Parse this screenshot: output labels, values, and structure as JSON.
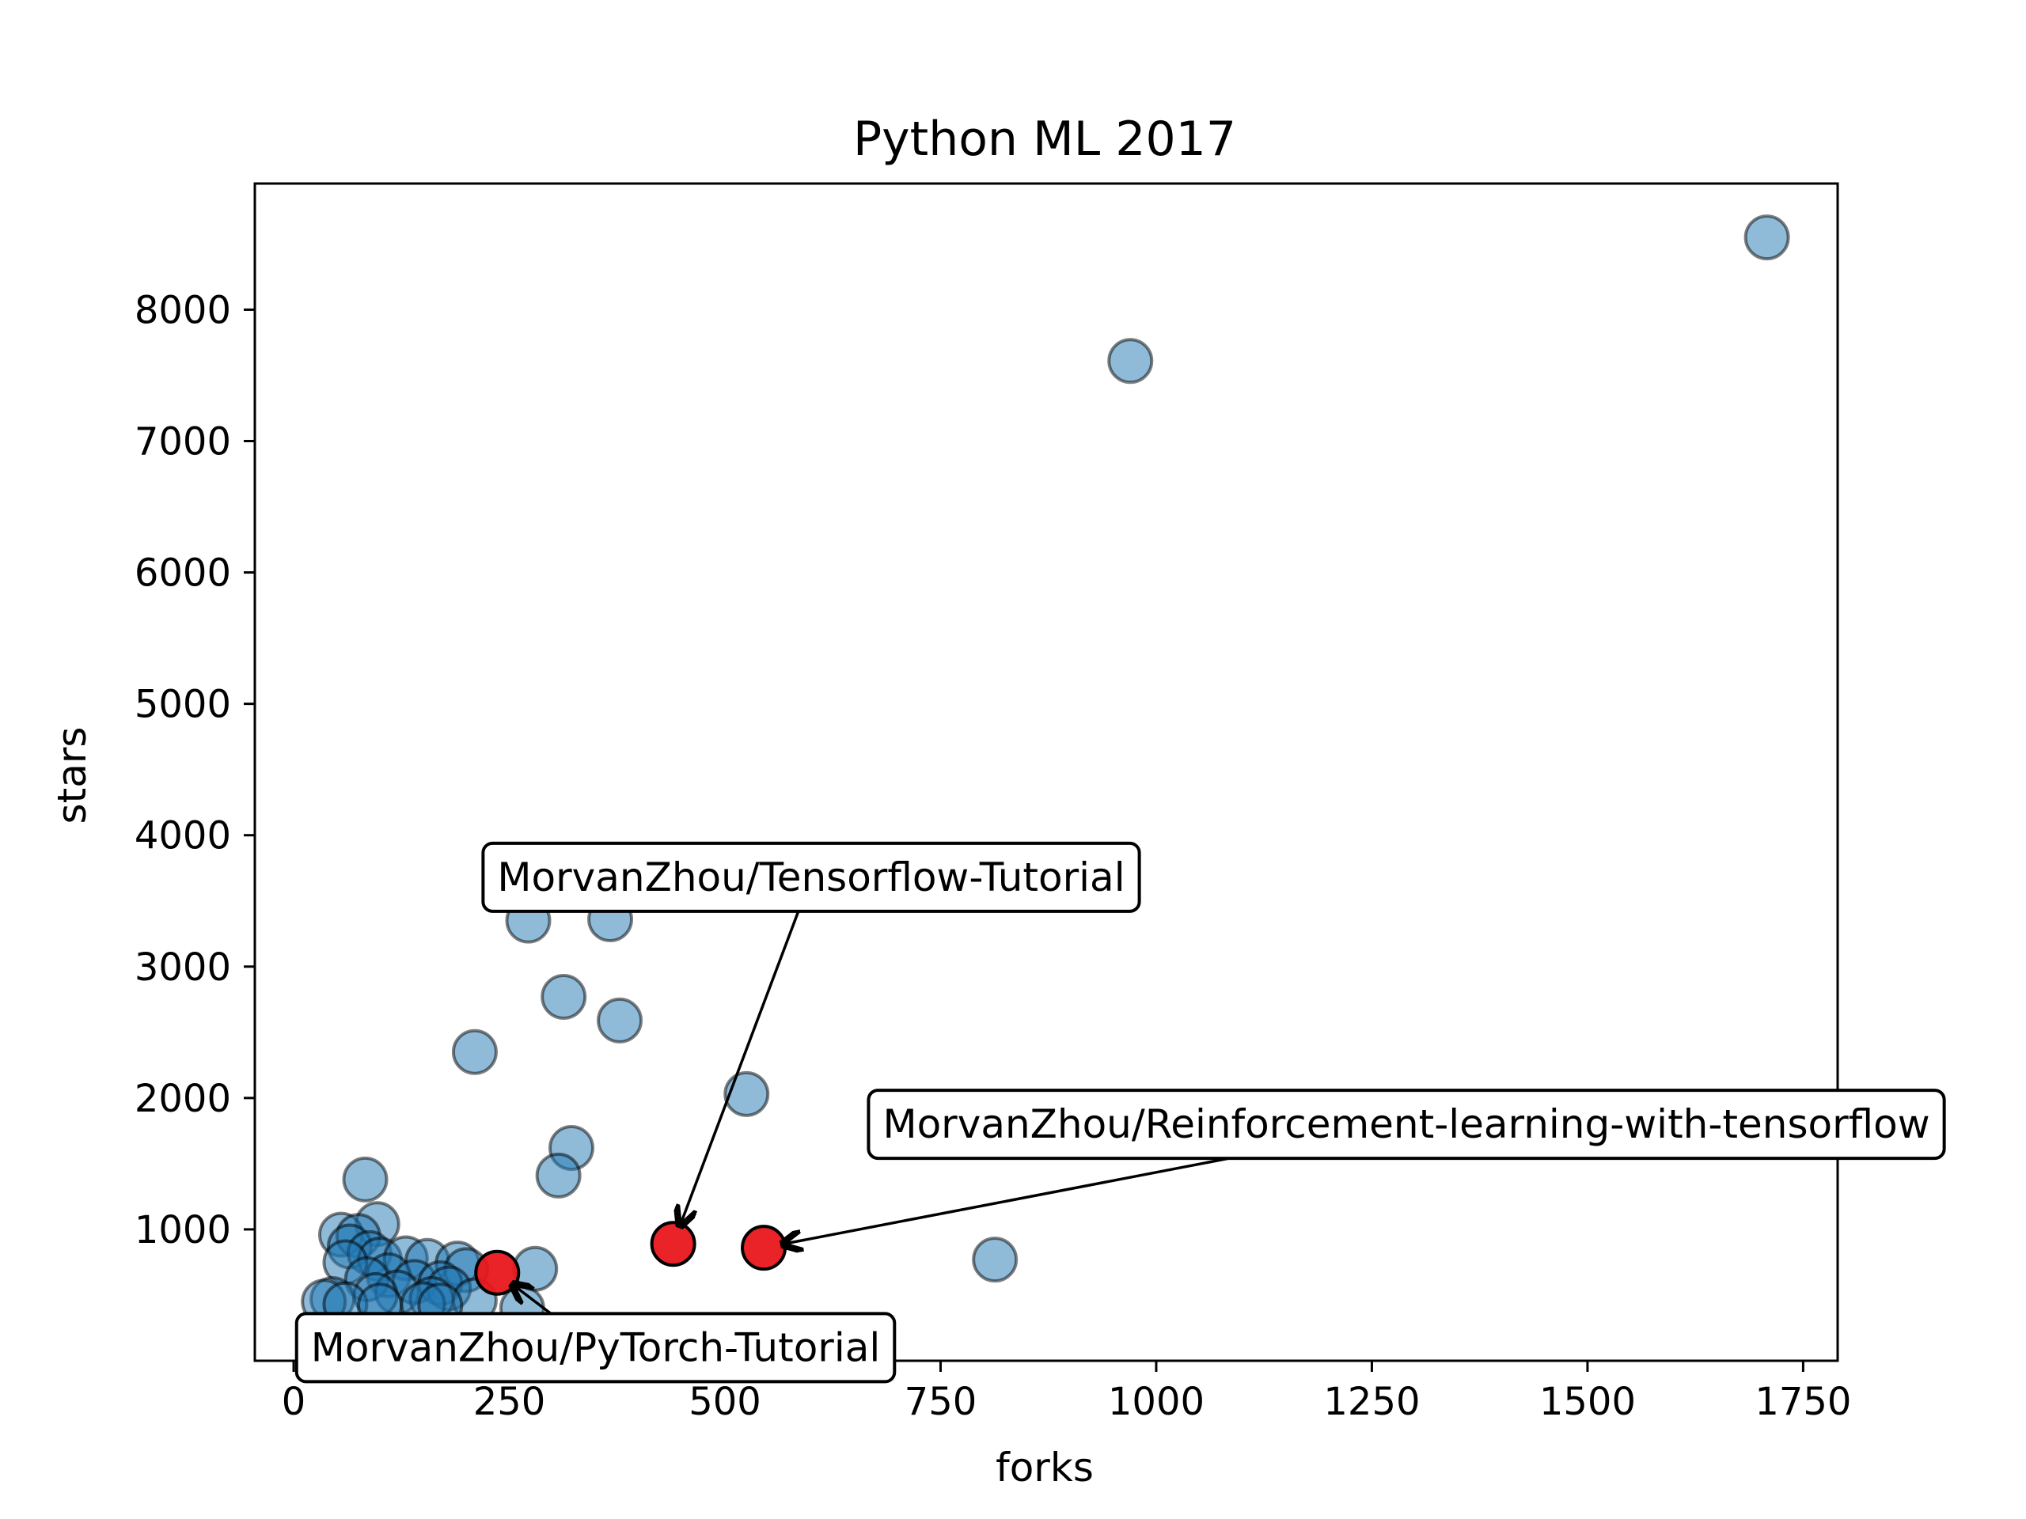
{
  "chart_data": {
    "type": "scatter",
    "title": "Python ML 2017",
    "xlabel": "forks",
    "ylabel": "stars",
    "xlim": [
      -45,
      1790
    ],
    "ylim": [
      0,
      8960
    ],
    "xticks": [
      0,
      250,
      500,
      750,
      1000,
      1250,
      1500,
      1750
    ],
    "yticks": [
      1000,
      2000,
      3000,
      4000,
      5000,
      6000,
      7000,
      8000
    ],
    "grid": false,
    "legend": "none",
    "colors": {
      "point_fill": "#1f77b4",
      "highlight_fill": "#e8171b",
      "marker_edge": "#000000"
    },
    "series": [
      {
        "points": [
          [
            1708,
            8550
          ],
          [
            970,
            7610
          ],
          [
            272,
            3350
          ],
          [
            367,
            3360
          ],
          [
            313,
            2770
          ],
          [
            378,
            2590
          ],
          [
            210,
            2350
          ],
          [
            525,
            2030
          ],
          [
            322,
            1620
          ],
          [
            307,
            1410
          ],
          [
            813,
            770
          ],
          [
            83,
            1380
          ],
          [
            97,
            1040
          ],
          [
            55,
            960
          ],
          [
            75,
            950
          ],
          [
            65,
            870
          ],
          [
            88,
            820
          ],
          [
            100,
            770
          ],
          [
            60,
            750
          ],
          [
            130,
            780
          ],
          [
            155,
            760
          ],
          [
            190,
            740
          ],
          [
            280,
            700
          ],
          [
            200,
            690
          ],
          [
            110,
            650
          ],
          [
            85,
            620
          ],
          [
            140,
            600
          ],
          [
            170,
            590
          ],
          [
            180,
            550
          ],
          [
            120,
            520
          ],
          [
            95,
            500
          ],
          [
            45,
            470
          ],
          [
            160,
            470
          ],
          [
            210,
            460
          ],
          [
            35,
            450
          ],
          [
            60,
            430
          ],
          [
            100,
            420
          ],
          [
            150,
            430
          ],
          [
            170,
            420
          ],
          [
            265,
            400
          ]
        ]
      },
      {
        "points": [
          [
            440,
            890
          ],
          [
            545,
            860
          ],
          [
            236,
            670
          ]
        ]
      }
    ],
    "annotations": [
      {
        "text": "MorvanZhou/Tensorflow-Tutorial",
        "target": [
          440,
          890
        ],
        "text_at": [
          600,
          3680
        ]
      },
      {
        "text": "MorvanZhou/Reinforcement-learning-with-tensorflow",
        "target": [
          545,
          860
        ],
        "text_at": [
          1290,
          1800
        ]
      },
      {
        "text": "MorvanZhou/PyTorch-Tutorial",
        "target": [
          236,
          670
        ],
        "text_at": [
          350,
          100
        ]
      }
    ]
  }
}
